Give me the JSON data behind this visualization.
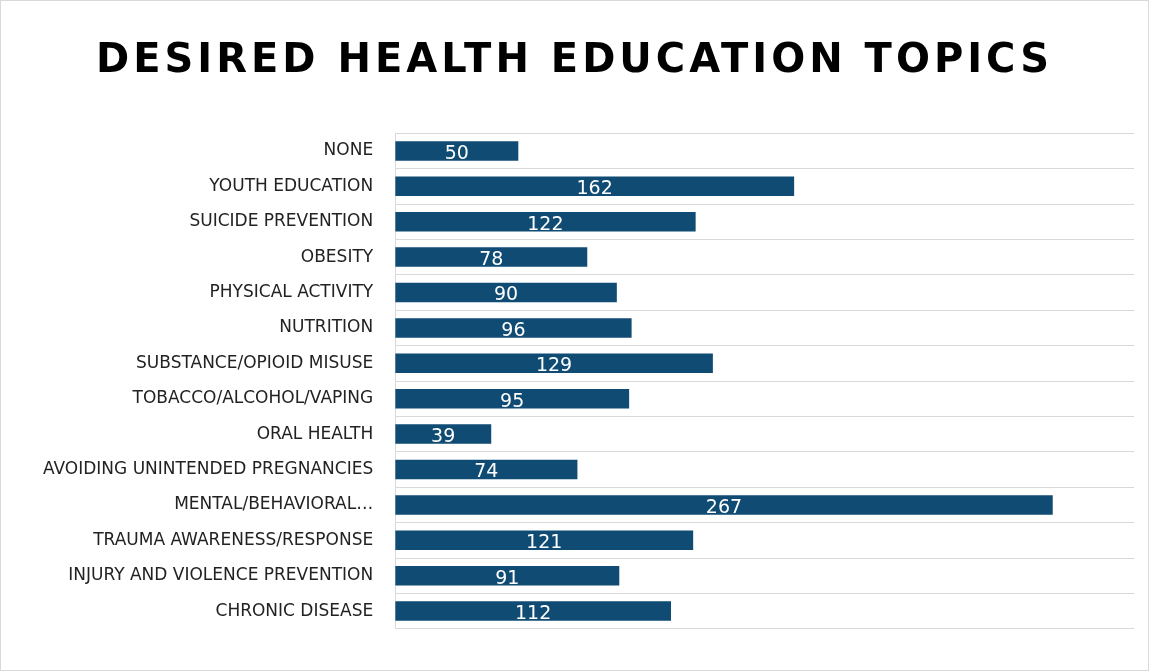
{
  "chart_data": {
    "type": "bar",
    "orientation": "horizontal",
    "title": "DESIRED HEALTH EDUCATION TOPICS",
    "categories": [
      "NONE",
      "YOUTH EDUCATION",
      "SUICIDE PREVENTION",
      "OBESITY",
      "PHYSICAL ACTIVITY",
      "NUTRITION",
      "SUBSTANCE/OPIOID MISUSE",
      "TOBACCO/ALCOHOL/VAPING",
      "ORAL HEALTH",
      "AVOIDING UNINTENDED PREGNANCIES",
      "MENTAL/BEHAVIORAL…",
      "TRAUMA AWARENESS/RESPONSE",
      "INJURY AND VIOLENCE PREVENTION",
      "CHRONIC DISEASE"
    ],
    "values": [
      50,
      162,
      122,
      78,
      90,
      96,
      129,
      95,
      39,
      74,
      267,
      121,
      91,
      112
    ],
    "color": "#0f4b73",
    "xlim": [
      0,
      300
    ],
    "grid": "y",
    "data_labels": true,
    "tick_labels": "y"
  }
}
